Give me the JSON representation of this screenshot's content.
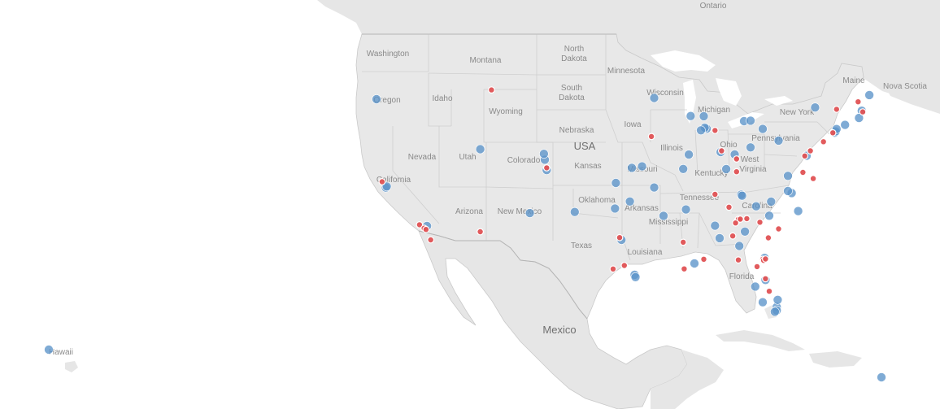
{
  "map": {
    "colors": {
      "land": "#e8e8e8",
      "land_other": "#e4e4e4",
      "water": "#ffffff",
      "lake": "#ffffff",
      "border": "#c8c8c8",
      "blue": "#5b93c9",
      "red": "#e05254"
    },
    "labels": {
      "ontario": "Ontario",
      "washington": "Washington",
      "montana": "Montana",
      "north_dakota_1": "North",
      "north_dakota_2": "Dakota",
      "minnesota": "Minnesota",
      "maine": "Maine",
      "nova_scotia": "Nova Scotia",
      "south_dakota_1": "South",
      "south_dakota_2": "Dakota",
      "wisconsin": "Wisconsin",
      "oregon": "Oregon",
      "idaho": "Idaho",
      "wyoming": "Wyoming",
      "michigan": "Michigan",
      "new_york": "New York",
      "nebraska": "Nebraska",
      "iowa": "Iowa",
      "pennsylvania": "Pennsylvania",
      "usa": "USA",
      "nevada": "Nevada",
      "utah": "Utah",
      "colorado": "Colorado",
      "illinois": "Illinois",
      "ohio": "Ohio",
      "west_virginia_1": "West",
      "west_virginia_2": "Virginia",
      "california": "California",
      "kansas": "Kansas",
      "missouri": "Missouri",
      "kentucky": "Kentucky",
      "tennessee": "Tennessee",
      "carolina": "Carolina",
      "oklahoma": "Oklahoma",
      "arizona": "Arizona",
      "new_mexico": "New Mexico",
      "arkansas": "Arkansas",
      "mississippi": "Mississippi",
      "texas": "Texas",
      "louisiana": "Louisiana",
      "florida": "Florida",
      "mexico": "Mexico",
      "hawaii": "Hawaii"
    },
    "points": [
      {
        "lon": -155.5,
        "lat": 19.7,
        "group": "blue"
      },
      {
        "lon": -123.0,
        "lat": 44.9,
        "group": "blue"
      },
      {
        "lon": -110.7,
        "lat": 45.7,
        "group": "red"
      },
      {
        "lon": -122.4,
        "lat": 37.8,
        "group": "red"
      },
      {
        "lon": -122.0,
        "lat": 37.3,
        "group": "blue"
      },
      {
        "lon": -121.9,
        "lat": 37.4,
        "group": "blue"
      },
      {
        "lon": -118.4,
        "lat": 34.1,
        "group": "red"
      },
      {
        "lon": -117.9,
        "lat": 33.8,
        "group": "red"
      },
      {
        "lon": -117.7,
        "lat": 33.7,
        "group": "red"
      },
      {
        "lon": -117.6,
        "lat": 34.0,
        "group": "blue"
      },
      {
        "lon": -117.2,
        "lat": 32.8,
        "group": "red"
      },
      {
        "lon": -111.9,
        "lat": 40.6,
        "group": "blue"
      },
      {
        "lon": -111.9,
        "lat": 33.5,
        "group": "red"
      },
      {
        "lon": -105.0,
        "lat": 39.7,
        "group": "blue"
      },
      {
        "lon": -104.8,
        "lat": 38.8,
        "group": "blue"
      },
      {
        "lon": -104.8,
        "lat": 39.0,
        "group": "red"
      },
      {
        "lon": -105.1,
        "lat": 40.2,
        "group": "blue"
      },
      {
        "lon": -106.6,
        "lat": 35.1,
        "group": "blue"
      },
      {
        "lon": -101.8,
        "lat": 35.2,
        "group": "blue"
      },
      {
        "lon": -97.5,
        "lat": 35.5,
        "group": "blue"
      },
      {
        "lon": -95.9,
        "lat": 36.1,
        "group": "blue"
      },
      {
        "lon": -96.8,
        "lat": 32.8,
        "group": "blue"
      },
      {
        "lon": -97.0,
        "lat": 33.0,
        "group": "red"
      },
      {
        "lon": -97.7,
        "lat": 30.3,
        "group": "red"
      },
      {
        "lon": -95.4,
        "lat": 29.8,
        "group": "blue"
      },
      {
        "lon": -95.3,
        "lat": 29.6,
        "group": "blue"
      },
      {
        "lon": -96.5,
        "lat": 30.6,
        "group": "red"
      },
      {
        "lon": -90.1,
        "lat": 30.0,
        "group": "red"
      },
      {
        "lon": -89.0,
        "lat": 30.4,
        "group": "blue"
      },
      {
        "lon": -97.4,
        "lat": 37.7,
        "group": "blue"
      },
      {
        "lon": -95.7,
        "lat": 39.0,
        "group": "blue"
      },
      {
        "lon": -94.6,
        "lat": 39.1,
        "group": "blue"
      },
      {
        "lon": -93.3,
        "lat": 37.2,
        "group": "blue"
      },
      {
        "lon": -92.3,
        "lat": 34.7,
        "group": "blue"
      },
      {
        "lon": -90.2,
        "lat": 38.6,
        "group": "blue"
      },
      {
        "lon": -93.6,
        "lat": 41.6,
        "group": "red"
      },
      {
        "lon": -93.3,
        "lat": 44.9,
        "group": "blue"
      },
      {
        "lon": -88.0,
        "lat": 43.0,
        "group": "blue"
      },
      {
        "lon": -89.4,
        "lat": 43.1,
        "group": "blue"
      },
      {
        "lon": -87.7,
        "lat": 41.9,
        "group": "blue"
      },
      {
        "lon": -87.9,
        "lat": 42.0,
        "group": "blue"
      },
      {
        "lon": -88.3,
        "lat": 41.8,
        "group": "blue"
      },
      {
        "lon": -89.6,
        "lat": 39.8,
        "group": "blue"
      },
      {
        "lon": -86.8,
        "lat": 41.7,
        "group": "red"
      },
      {
        "lon": -86.2,
        "lat": 39.8,
        "group": "blue"
      },
      {
        "lon": -86.1,
        "lat": 39.9,
        "group": "red"
      },
      {
        "lon": -84.5,
        "lat": 39.1,
        "group": "red"
      },
      {
        "lon": -84.7,
        "lat": 39.5,
        "group": "blue"
      },
      {
        "lon": -83.0,
        "lat": 40.0,
        "group": "blue"
      },
      {
        "lon": -81.7,
        "lat": 41.5,
        "group": "blue"
      },
      {
        "lon": -83.7,
        "lat": 42.3,
        "group": "blue"
      },
      {
        "lon": -83.0,
        "lat": 42.3,
        "group": "blue"
      },
      {
        "lon": -85.6,
        "lat": 38.3,
        "group": "blue"
      },
      {
        "lon": -84.5,
        "lat": 38.0,
        "group": "red"
      },
      {
        "lon": -86.8,
        "lat": 36.2,
        "group": "red"
      },
      {
        "lon": -84.0,
        "lat": 36.0,
        "group": "blue"
      },
      {
        "lon": -83.9,
        "lat": 35.9,
        "group": "blue"
      },
      {
        "lon": -85.3,
        "lat": 35.0,
        "group": "red"
      },
      {
        "lon": -84.4,
        "lat": 33.8,
        "group": "red"
      },
      {
        "lon": -84.3,
        "lat": 33.9,
        "group": "red"
      },
      {
        "lon": -84.1,
        "lat": 33.9,
        "group": "red"
      },
      {
        "lon": -83.4,
        "lat": 33.9,
        "group": "red"
      },
      {
        "lon": -84.6,
        "lat": 33.6,
        "group": "red"
      },
      {
        "lon": -84.9,
        "lat": 32.5,
        "group": "red"
      },
      {
        "lon": -83.6,
        "lat": 32.8,
        "group": "blue"
      },
      {
        "lon": -84.2,
        "lat": 31.6,
        "group": "blue"
      },
      {
        "lon": -81.1,
        "lat": 32.1,
        "group": "red"
      },
      {
        "lon": -82.0,
        "lat": 33.5,
        "group": "red"
      },
      {
        "lon": -81.0,
        "lat": 34.0,
        "group": "blue"
      },
      {
        "lon": -80.0,
        "lat": 32.8,
        "group": "red"
      },
      {
        "lon": -82.4,
        "lat": 34.9,
        "group": "blue"
      },
      {
        "lon": -80.8,
        "lat": 35.2,
        "group": "blue"
      },
      {
        "lon": -78.6,
        "lat": 35.8,
        "group": "blue"
      },
      {
        "lon": -79.0,
        "lat": 36.0,
        "group": "blue"
      },
      {
        "lon": -77.9,
        "lat": 34.2,
        "group": "blue"
      },
      {
        "lon": -86.8,
        "lat": 33.5,
        "group": "blue"
      },
      {
        "lon": -88.0,
        "lat": 30.7,
        "group": "red"
      },
      {
        "lon": -86.3,
        "lat": 32.4,
        "group": "blue"
      },
      {
        "lon": -90.2,
        "lat": 32.3,
        "group": "red"
      },
      {
        "lon": -89.9,
        "lat": 35.1,
        "group": "blue"
      },
      {
        "lon": -81.7,
        "lat": 30.3,
        "group": "red"
      },
      {
        "lon": -81.6,
        "lat": 30.2,
        "group": "red"
      },
      {
        "lon": -81.4,
        "lat": 30.3,
        "group": "red"
      },
      {
        "lon": -81.5,
        "lat": 30.4,
        "group": "blue"
      },
      {
        "lon": -82.3,
        "lat": 29.7,
        "group": "red"
      },
      {
        "lon": -81.4,
        "lat": 28.5,
        "group": "blue"
      },
      {
        "lon": -81.4,
        "lat": 28.6,
        "group": "red"
      },
      {
        "lon": -82.5,
        "lat": 28.0,
        "group": "blue"
      },
      {
        "lon": -84.3,
        "lat": 30.4,
        "group": "red"
      },
      {
        "lon": -81.7,
        "lat": 26.6,
        "group": "blue"
      },
      {
        "lon": -80.2,
        "lat": 26.1,
        "group": "blue"
      },
      {
        "lon": -80.1,
        "lat": 26.7,
        "group": "blue"
      },
      {
        "lon": -80.2,
        "lat": 25.8,
        "group": "blue"
      },
      {
        "lon": -80.4,
        "lat": 25.7,
        "group": "blue"
      },
      {
        "lon": -81.0,
        "lat": 27.5,
        "group": "red"
      },
      {
        "lon": -77.4,
        "lat": 37.5,
        "group": "red"
      },
      {
        "lon": -77.2,
        "lat": 38.9,
        "group": "red"
      },
      {
        "lon": -77.0,
        "lat": 38.9,
        "group": "blue"
      },
      {
        "lon": -76.6,
        "lat": 39.3,
        "group": "red"
      },
      {
        "lon": -76.3,
        "lat": 36.9,
        "group": "red"
      },
      {
        "lon": -79.0,
        "lat": 37.3,
        "group": "blue"
      },
      {
        "lon": -80.0,
        "lat": 40.4,
        "group": "blue"
      },
      {
        "lon": -75.2,
        "lat": 40.0,
        "group": "red"
      },
      {
        "lon": -74.2,
        "lat": 40.7,
        "group": "red"
      },
      {
        "lon": -74.0,
        "lat": 40.7,
        "group": "blue"
      },
      {
        "lon": -73.9,
        "lat": 40.8,
        "group": "blue"
      },
      {
        "lon": -73.8,
        "lat": 41.0,
        "group": "blue"
      },
      {
        "lon": -72.9,
        "lat": 41.3,
        "group": "blue"
      },
      {
        "lon": -73.8,
        "lat": 42.7,
        "group": "red"
      },
      {
        "lon": -76.1,
        "lat": 43.0,
        "group": "blue"
      },
      {
        "lon": -71.1,
        "lat": 42.4,
        "group": "blue"
      },
      {
        "lon": -71.0,
        "lat": 42.3,
        "group": "red"
      },
      {
        "lon": -71.4,
        "lat": 41.8,
        "group": "blue"
      },
      {
        "lon": -71.5,
        "lat": 43.2,
        "group": "red"
      },
      {
        "lon": -70.3,
        "lat": 43.7,
        "group": "blue"
      },
      {
        "lon": -66.1,
        "lat": 18.4,
        "group": "blue"
      }
    ]
  }
}
